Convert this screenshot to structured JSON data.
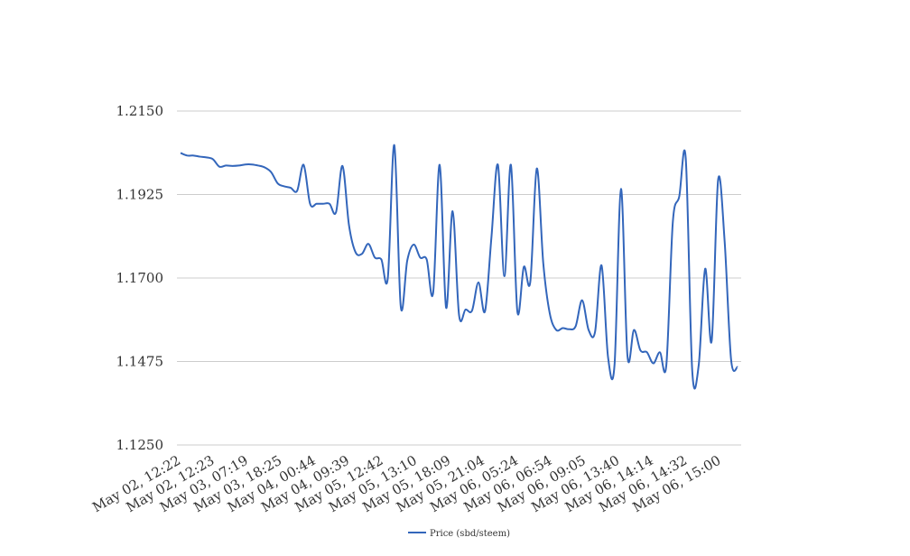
{
  "chart_data": {
    "type": "line",
    "title": "",
    "xlabel": "",
    "ylabel": "",
    "ylim": [
      1.125,
      1.215
    ],
    "y_ticks": [
      "1.1250",
      "1.1475",
      "1.1700",
      "1.1925",
      "1.2150"
    ],
    "x_ticks": [
      "May 02, 12:22",
      "May 02, 12:23",
      "May 03, 07:19",
      "May 03, 18:25",
      "May 04, 00:44",
      "May 04, 09:39",
      "May 05, 12:42",
      "May 05, 13:10",
      "May 05, 18:09",
      "May 05, 21:04",
      "May 06, 05:24",
      "May 06, 06:54",
      "May 06, 09:05",
      "May 06, 13:40",
      "May 06, 14:14",
      "May 06, 14:32",
      "May 06, 15:00"
    ],
    "grid": true,
    "legend_position": "bottom",
    "series": [
      {
        "name": "Price (sbd/steem)",
        "color": "#3366bb",
        "values": [
          1.2037,
          1.203,
          1.203,
          1.2027,
          1.2025,
          1.202,
          1.2,
          1.2003,
          1.2002,
          1.2003,
          1.2006,
          1.2006,
          1.2003,
          1.1998,
          1.1985,
          1.1955,
          1.1947,
          1.1943,
          1.1935,
          1.2005,
          1.19,
          1.19,
          1.19,
          1.19,
          1.1877,
          1.2002,
          1.1843,
          1.177,
          1.1765,
          1.1792,
          1.1755,
          1.175,
          1.17,
          1.2058,
          1.1623,
          1.1747,
          1.179,
          1.1755,
          1.175,
          1.166,
          1.2005,
          1.162,
          1.188,
          1.16,
          1.1615,
          1.1612,
          1.1688,
          1.161,
          1.181,
          1.2005,
          1.1705,
          1.2005,
          1.161,
          1.173,
          1.169,
          1.1995,
          1.174,
          1.1605,
          1.156,
          1.1565,
          1.1562,
          1.157,
          1.164,
          1.156,
          1.1555,
          1.1734,
          1.1487,
          1.1465,
          1.194,
          1.149,
          1.156,
          1.1505,
          1.15,
          1.147,
          1.15,
          1.1465,
          1.185,
          1.192,
          1.2022,
          1.145,
          1.1465,
          1.1725,
          1.153,
          1.1965,
          1.18,
          1.148,
          1.146
        ]
      }
    ]
  }
}
